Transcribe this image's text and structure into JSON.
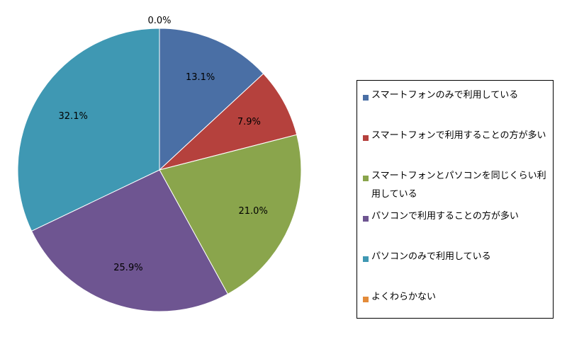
{
  "chart_data": {
    "type": "pie",
    "title": "",
    "start_angle_deg": 0,
    "direction": "clockwise",
    "slices": [
      {
        "label": "スマートフォンのみで利用している",
        "value": 13.1,
        "value_label": "13.1%",
        "color": "#4A6FA5"
      },
      {
        "label": "スマートフォンで利用することの方が多い",
        "value": 7.9,
        "value_label": "7.9%",
        "color": "#B5413D"
      },
      {
        "label": "スマートフォンとパソコンを同じくらい利用している",
        "value": 21.0,
        "value_label": "21.0%",
        "color": "#8AA54C"
      },
      {
        "label": "パソコンで利用することの方が多い",
        "value": 25.9,
        "value_label": "25.9%",
        "color": "#6E5591"
      },
      {
        "label": "パソコンのみで利用している",
        "value": 32.1,
        "value_label": "32.1%",
        "color": "#3F98B3"
      },
      {
        "label": "よくわらかない",
        "value": 0.0,
        "value_label": "0.0%",
        "color": "#E38B3A"
      }
    ],
    "legend_position": "right"
  }
}
